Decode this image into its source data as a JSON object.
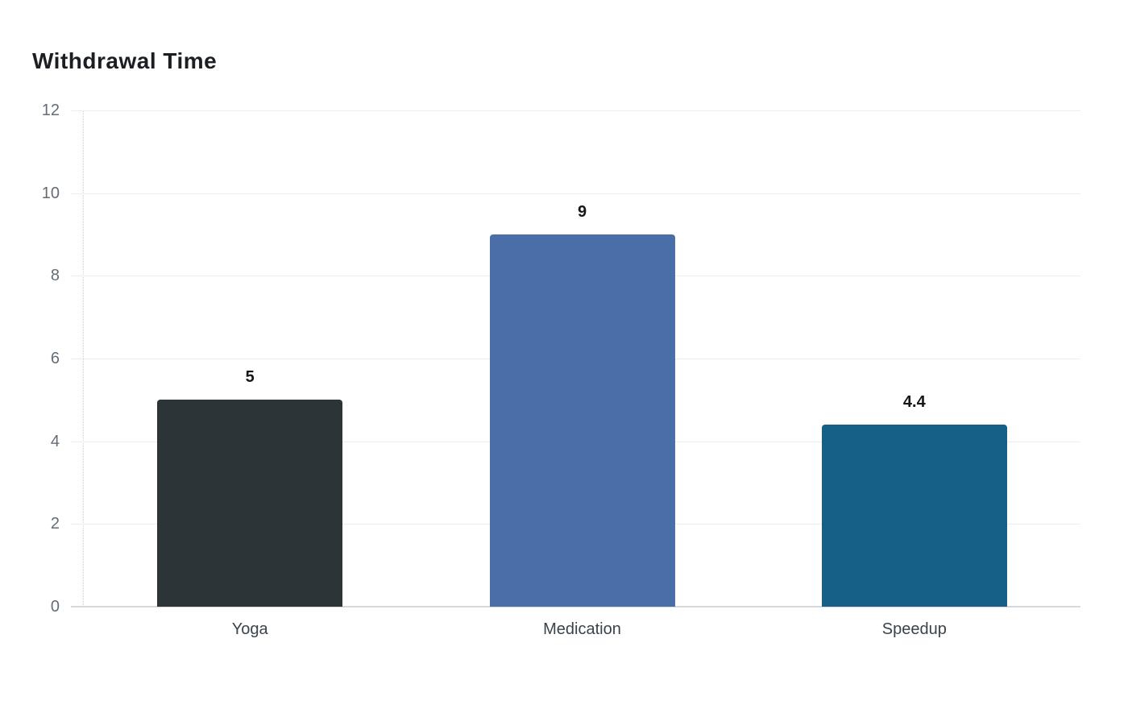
{
  "page": {
    "background_color": "#ffffff"
  },
  "chart_data": {
    "type": "bar",
    "title": "Withdrawal Time",
    "categories": [
      "Yoga",
      "Medication",
      "Speedup"
    ],
    "values": [
      5,
      9,
      4.4
    ],
    "value_labels": [
      "5",
      "9",
      "4.4"
    ],
    "bar_colors": [
      "#2d3438",
      "#4a6ea7",
      "#165f87"
    ],
    "ylim": [
      0,
      12
    ],
    "yticks": [
      0,
      2,
      4,
      6,
      8,
      10,
      12
    ],
    "xlabel": "",
    "ylabel": "",
    "grid": "horizontal",
    "legend": "none",
    "colors": {
      "gridline": "#ededef",
      "baseline": "#d6d9dc",
      "axis_line": "#cfd4d8",
      "ytick_text": "#646d76",
      "xtick_text": "#39434e",
      "value_text": "#141719",
      "title_text": "#1b1f23"
    }
  }
}
